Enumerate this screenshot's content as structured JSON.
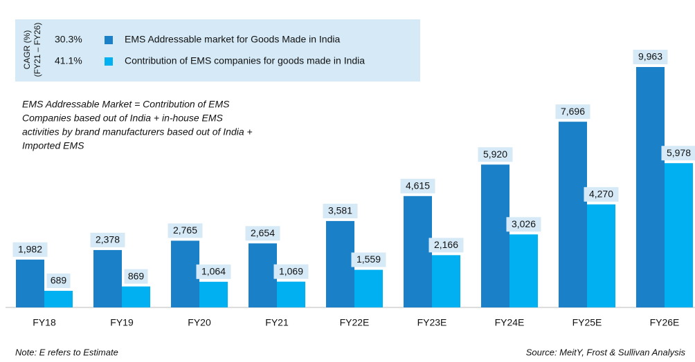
{
  "chart_data": {
    "type": "bar",
    "categories": [
      "FY18",
      "FY19",
      "FY20",
      "FY21",
      "FY22E",
      "FY23E",
      "FY24E",
      "FY25E",
      "FY26E"
    ],
    "series": [
      {
        "name": "EMS Addressable market for Goods Made in India",
        "color": "#1a80c8",
        "cagr": "30.3%",
        "values": [
          1982,
          2378,
          2765,
          2654,
          3581,
          4615,
          5920,
          7696,
          9963
        ],
        "value_labels": [
          "1,982",
          "2,378",
          "2,765",
          "2,654",
          "3,581",
          "4,615",
          "5,920",
          "7,696",
          "9,963"
        ]
      },
      {
        "name": "Contribution of EMS companies for goods made in India",
        "color": "#00b0f0",
        "cagr": "41.1%",
        "values": [
          689,
          869,
          1064,
          1069,
          1559,
          2166,
          3026,
          4270,
          5978
        ],
        "value_labels": [
          "689",
          "869",
          "1,064",
          "1,069",
          "1,559",
          "2,166",
          "3,026",
          "4,270",
          "5,978"
        ]
      }
    ],
    "legend_title": [
      "CAGR (%)",
      "(FY21 – FY26)"
    ],
    "annotation": [
      "EMS Addressable Market = Contribution of EMS",
      "Companies based out of India + in-house EMS",
      "activities by brand manufacturers based out of India +",
      "Imported EMS"
    ],
    "note": "Note: E refers to Estimate",
    "source": "Source: MeitY, Frost & Sullivan Analysis"
  }
}
